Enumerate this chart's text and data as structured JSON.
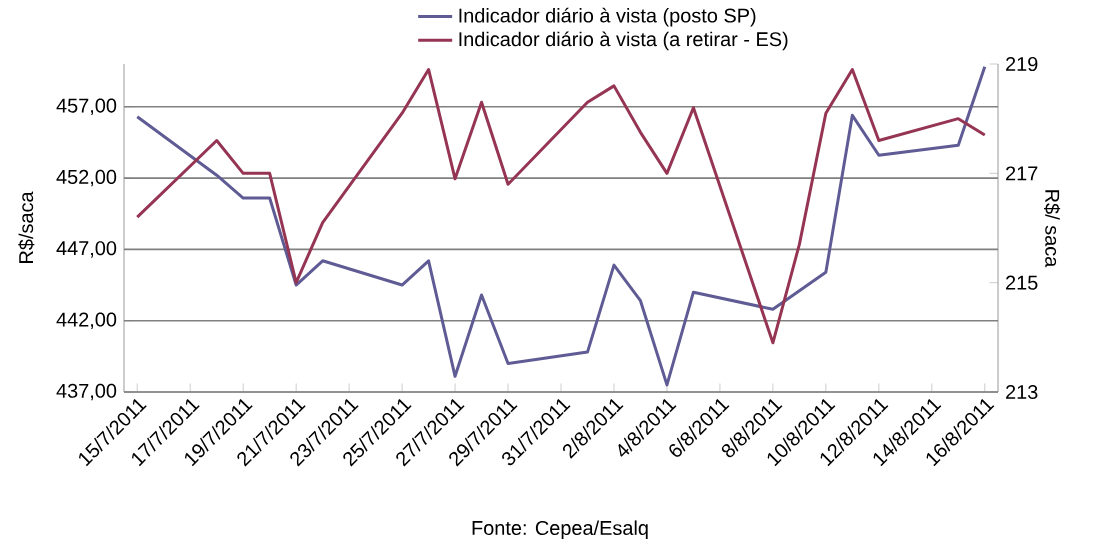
{
  "chart_data": {
    "type": "line",
    "xlabel": null,
    "ylabel": "R$/saca",
    "y2label": "R$/ saca",
    "annotations": [
      "Fonte: Cepea/Esalq"
    ],
    "xlim": [
      "2011-07-14T12:00",
      "2011-08-16T12:00"
    ],
    "xticks": [
      {
        "value": "2011-07-15",
        "label": "15/7/2011"
      },
      {
        "value": "2011-07-17",
        "label": "17/7/2011"
      },
      {
        "value": "2011-07-19",
        "label": "19/7/2011"
      },
      {
        "value": "2011-07-21",
        "label": "21/7/2011"
      },
      {
        "value": "2011-07-23",
        "label": "23/7/2011"
      },
      {
        "value": "2011-07-25",
        "label": "25/7/2011"
      },
      {
        "value": "2011-07-27",
        "label": "27/7/2011"
      },
      {
        "value": "2011-07-29",
        "label": "29/7/2011"
      },
      {
        "value": "2011-07-31",
        "label": "31/7/2011"
      },
      {
        "value": "2011-08-02",
        "label": "2/8/2011"
      },
      {
        "value": "2011-08-04",
        "label": "4/8/2011"
      },
      {
        "value": "2011-08-06",
        "label": "6/8/2011"
      },
      {
        "value": "2011-08-08",
        "label": "8/8/2011"
      },
      {
        "value": "2011-08-10",
        "label": "10/8/2011"
      },
      {
        "value": "2011-08-12",
        "label": "12/8/2011"
      },
      {
        "value": "2011-08-14",
        "label": "14/8/2011"
      },
      {
        "value": "2011-08-16",
        "label": "16/8/2011"
      }
    ],
    "ylim": [
      437,
      460
    ],
    "yticks": [
      {
        "value": 437,
        "label": "437,00"
      },
      {
        "value": 442,
        "label": "442,00"
      },
      {
        "value": 447,
        "label": "447,00"
      },
      {
        "value": 452,
        "label": "452,00"
      },
      {
        "value": 457,
        "label": "457,00"
      }
    ],
    "y2lim": [
      213,
      219
    ],
    "y2ticks": [
      213,
      215,
      217,
      219
    ],
    "grid": "y",
    "legend": "top",
    "marker": "none",
    "line_style": "solid",
    "series": [
      {
        "name": "Indicador diário à vista (posto SP)",
        "color": "#5f5b94",
        "x": [
          "2011-07-15",
          "2011-07-18",
          "2011-07-19",
          "2011-07-20",
          "2011-07-21",
          "2011-07-22",
          "2011-07-25",
          "2011-07-26",
          "2011-07-27",
          "2011-07-28",
          "2011-07-29",
          "2011-08-01",
          "2011-08-02",
          "2011-08-03",
          "2011-08-04",
          "2011-08-05",
          "2011-08-08",
          "2011-08-10",
          "2011-08-11",
          "2011-08-12",
          "2011-08-15",
          "2011-08-16"
        ],
        "values": [
          456.3,
          452.2,
          450.6,
          450.6,
          444.5,
          446.2,
          444.5,
          446.2,
          438.1,
          443.8,
          439.0,
          439.8,
          445.9,
          443.4,
          437.5,
          444.0,
          442.8,
          445.4,
          456.4,
          453.6,
          454.3,
          459.8
        ]
      },
      {
        "name": "Indicador diário à vista (a retirar - ES)",
        "color": "#953553",
        "axis": "y2",
        "x": [
          "2011-07-15",
          "2011-07-18",
          "2011-07-19",
          "2011-07-20",
          "2011-07-21",
          "2011-07-22",
          "2011-07-25",
          "2011-07-26",
          "2011-07-27",
          "2011-07-28",
          "2011-07-29",
          "2011-08-01",
          "2011-08-02",
          "2011-08-03",
          "2011-08-04",
          "2011-08-05",
          "2011-08-08",
          "2011-08-09",
          "2011-08-10",
          "2011-08-11",
          "2011-08-12",
          "2011-08-15",
          "2011-08-16"
        ],
        "values": [
          216.2,
          217.6,
          217.0,
          217.0,
          215.0,
          216.1,
          218.1,
          218.9,
          216.9,
          218.3,
          216.8,
          218.3,
          218.6,
          217.75,
          217.0,
          218.2,
          213.9,
          215.7,
          218.1,
          218.9,
          217.6,
          218.0,
          217.7
        ]
      }
    ]
  }
}
